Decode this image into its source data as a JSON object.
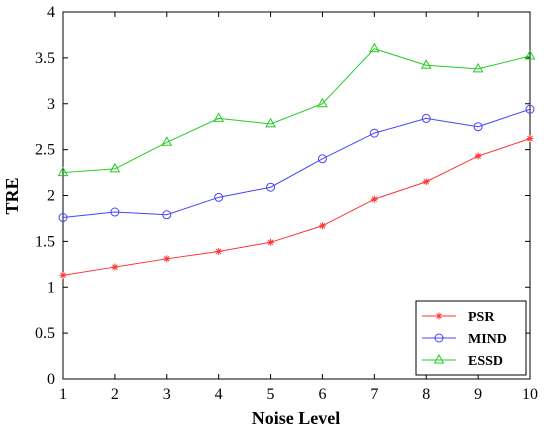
{
  "chart_data": {
    "type": "line",
    "xlabel": "Noise Level",
    "ylabel": "TRE",
    "x": [
      1,
      2,
      3,
      4,
      5,
      6,
      7,
      8,
      9,
      10
    ],
    "xlim": [
      1,
      10
    ],
    "ylim": [
      0,
      4
    ],
    "xticks": [
      "1",
      "2",
      "3",
      "4",
      "5",
      "6",
      "7",
      "8",
      "9",
      "10"
    ],
    "yticks": [
      "0",
      "0.5",
      "1",
      "1.5",
      "2",
      "2.5",
      "3",
      "3.5",
      "4"
    ],
    "grid": false,
    "legend_position": "bottom-right",
    "series": [
      {
        "name": "PSR",
        "color": "#ff3333",
        "marker": "star",
        "values": [
          1.13,
          1.22,
          1.31,
          1.39,
          1.49,
          1.67,
          1.96,
          2.15,
          2.43,
          2.62
        ]
      },
      {
        "name": "MIND",
        "color": "#4444ff",
        "marker": "circle",
        "values": [
          1.76,
          1.82,
          1.79,
          1.98,
          2.09,
          2.4,
          2.68,
          2.84,
          2.75,
          2.94
        ]
      },
      {
        "name": "ESSD",
        "color": "#22cc22",
        "marker": "triangle",
        "values": [
          2.25,
          2.29,
          2.58,
          2.84,
          2.78,
          3.0,
          3.6,
          3.42,
          3.38,
          3.52
        ]
      }
    ]
  }
}
